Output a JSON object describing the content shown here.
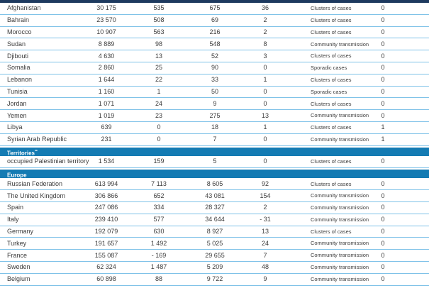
{
  "colors": {
    "top_bar": "#1E3A5F",
    "section_band": "#147BB3",
    "divider": "#7FC2E8",
    "text": "#3C3C3C"
  },
  "table": {
    "rows": [
      {
        "type": "country",
        "name": "Afghanistan",
        "total_cases": "30 175",
        "new_cases": "535",
        "total_deaths": "675",
        "new_deaths": "36",
        "classification": "Clusters of cases",
        "days_since_last_case": "0"
      },
      {
        "type": "country",
        "name": "Bahrain",
        "total_cases": "23 570",
        "new_cases": "508",
        "total_deaths": "69",
        "new_deaths": "2",
        "classification": "Clusters of cases",
        "days_since_last_case": "0"
      },
      {
        "type": "country",
        "name": "Morocco",
        "total_cases": "10 907",
        "new_cases": "563",
        "total_deaths": "216",
        "new_deaths": "2",
        "classification": "Clusters of cases",
        "days_since_last_case": "0"
      },
      {
        "type": "country",
        "name": "Sudan",
        "total_cases": "8 889",
        "new_cases": "98",
        "total_deaths": "548",
        "new_deaths": "8",
        "classification": "Community transmission",
        "days_since_last_case": "0"
      },
      {
        "type": "country",
        "name": "Djibouti",
        "total_cases": "4 630",
        "new_cases": "13",
        "total_deaths": "52",
        "new_deaths": "3",
        "classification": "Clusters of cases",
        "days_since_last_case": "0"
      },
      {
        "type": "country",
        "name": "Somalia",
        "total_cases": "2 860",
        "new_cases": "25",
        "total_deaths": "90",
        "new_deaths": "0",
        "classification": "Sporadic cases",
        "days_since_last_case": "0"
      },
      {
        "type": "country",
        "name": "Lebanon",
        "total_cases": "1 644",
        "new_cases": "22",
        "total_deaths": "33",
        "new_deaths": "1",
        "classification": "Clusters of cases",
        "days_since_last_case": "0"
      },
      {
        "type": "country",
        "name": "Tunisia",
        "total_cases": "1 160",
        "new_cases": "1",
        "total_deaths": "50",
        "new_deaths": "0",
        "classification": "Sporadic cases",
        "days_since_last_case": "0"
      },
      {
        "type": "country",
        "name": "Jordan",
        "total_cases": "1 071",
        "new_cases": "24",
        "total_deaths": "9",
        "new_deaths": "0",
        "classification": "Clusters of cases",
        "days_since_last_case": "0"
      },
      {
        "type": "country",
        "name": "Yemen",
        "total_cases": "1 019",
        "new_cases": "23",
        "total_deaths": "275",
        "new_deaths": "13",
        "classification": "Community transmission",
        "days_since_last_case": "0"
      },
      {
        "type": "country",
        "name": "Libya",
        "total_cases": "639",
        "new_cases": "0",
        "total_deaths": "18",
        "new_deaths": "1",
        "classification": "Clusters of cases",
        "days_since_last_case": "1"
      },
      {
        "type": "country",
        "name": "Syrian Arab Republic",
        "total_cases": "231",
        "new_cases": "0",
        "total_deaths": "7",
        "new_deaths": "0",
        "classification": "Community transmission",
        "days_since_last_case": "1"
      },
      {
        "type": "section",
        "label": "Territories",
        "marker": "**"
      },
      {
        "type": "country",
        "name": "occupied Palestinian territory",
        "total_cases": "1 534",
        "new_cases": "159",
        "total_deaths": "5",
        "new_deaths": "0",
        "classification": "Clusters of cases",
        "days_since_last_case": "0"
      },
      {
        "type": "section",
        "label": "Europe",
        "marker": ""
      },
      {
        "type": "country",
        "name": "Russian Federation",
        "total_cases": "613 994",
        "new_cases": "7 113",
        "total_deaths": "8 605",
        "new_deaths": "92",
        "classification": "Clusters of cases",
        "days_since_last_case": "0"
      },
      {
        "type": "country",
        "name": "The United Kingdom",
        "total_cases": "306 866",
        "new_cases": "652",
        "total_deaths": "43 081",
        "new_deaths": "154",
        "classification": "Community transmission",
        "days_since_last_case": "0"
      },
      {
        "type": "country",
        "name": "Spain",
        "total_cases": "247 086",
        "new_cases": "334",
        "total_deaths": "28 327",
        "new_deaths": "2",
        "classification": "Community transmission",
        "days_since_last_case": "0"
      },
      {
        "type": "country",
        "name": "Italy",
        "total_cases": "239 410",
        "new_cases": "577",
        "total_deaths": "34 644",
        "new_deaths": "- 31",
        "classification": "Community transmission",
        "days_since_last_case": "0"
      },
      {
        "type": "country",
        "name": "Germany",
        "total_cases": "192 079",
        "new_cases": "630",
        "total_deaths": "8 927",
        "new_deaths": "13",
        "classification": "Clusters of cases",
        "days_since_last_case": "0"
      },
      {
        "type": "country",
        "name": "Turkey",
        "total_cases": "191 657",
        "new_cases": "1 492",
        "total_deaths": "5 025",
        "new_deaths": "24",
        "classification": "Community transmission",
        "days_since_last_case": "0"
      },
      {
        "type": "country",
        "name": "France",
        "total_cases": "155 087",
        "new_cases": "- 169",
        "total_deaths": "29 655",
        "new_deaths": "7",
        "classification": "Community transmission",
        "days_since_last_case": "0"
      },
      {
        "type": "country",
        "name": "Sweden",
        "total_cases": "62 324",
        "new_cases": "1 487",
        "total_deaths": "5 209",
        "new_deaths": "48",
        "classification": "Community transmission",
        "days_since_last_case": "0"
      },
      {
        "type": "country",
        "name": "Belgium",
        "total_cases": "60 898",
        "new_cases": "88",
        "total_deaths": "9 722",
        "new_deaths": "9",
        "classification": "Community transmission",
        "days_since_last_case": "0"
      }
    ]
  }
}
